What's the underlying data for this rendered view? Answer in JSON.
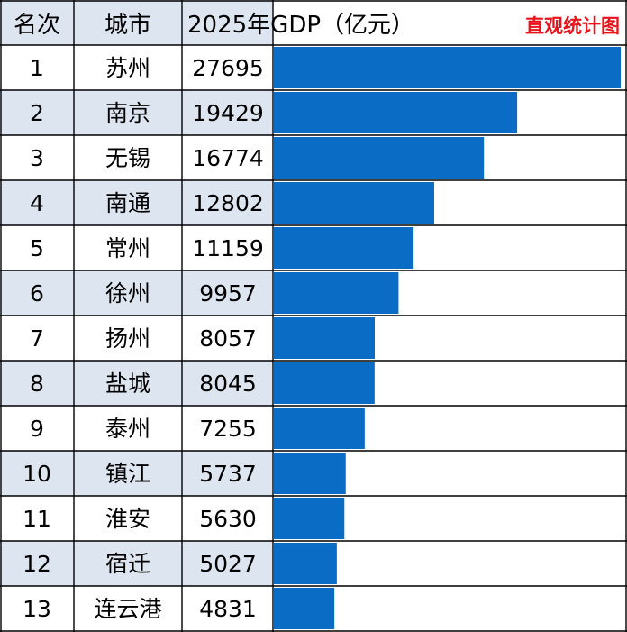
{
  "header": {
    "rank_label": "名次",
    "city_label": "城市",
    "value_label": "2025年GDP（亿元）",
    "brand": "直观统计图"
  },
  "colors": {
    "bar": "#0a6cc4",
    "stripe": "#dde5f0",
    "brand": "#e8131b"
  },
  "chart_data": {
    "type": "bar",
    "orientation": "horizontal",
    "title": "",
    "categories": [
      "苏州",
      "南京",
      "无锡",
      "南通",
      "常州",
      "徐州",
      "扬州",
      "盐城",
      "泰州",
      "镇江",
      "淮安",
      "宿迁",
      "连云港"
    ],
    "ranks": [
      "1",
      "2",
      "3",
      "4",
      "5",
      "6",
      "7",
      "8",
      "9",
      "10",
      "11",
      "12",
      "13"
    ],
    "values": [
      27695,
      19429,
      16774,
      12802,
      11159,
      9957,
      8057,
      8045,
      7255,
      5737,
      5630,
      5027,
      4831
    ],
    "xlim": [
      0,
      27695
    ],
    "grid": true
  }
}
